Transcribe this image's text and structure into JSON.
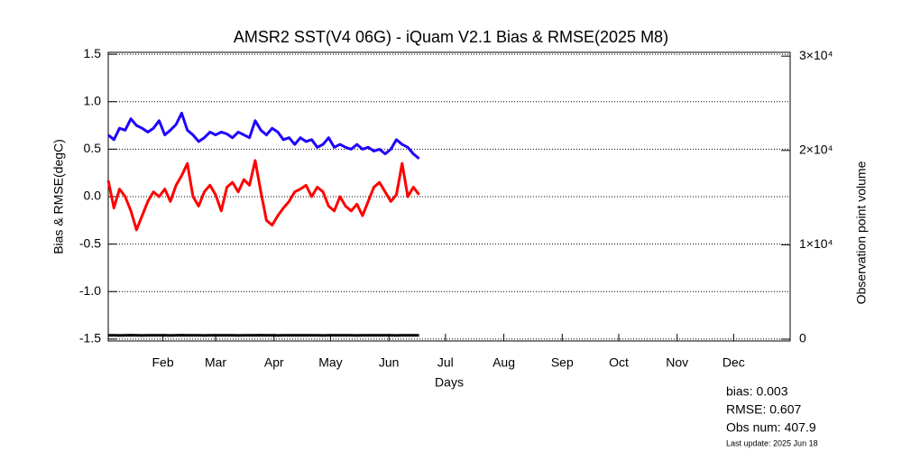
{
  "chart_data": {
    "type": "line",
    "title": "AMSR2 SST(V4 06G) - iQuam V2.1 Bias & RMSE(2025 M8)",
    "x_label": "Days",
    "y_label": "Bias & RMSE(degC)",
    "y2_label": "Observation point volume",
    "x": [
      3,
      6,
      9,
      12,
      15,
      18,
      21,
      24,
      27,
      30,
      33,
      36,
      39,
      42,
      45,
      48,
      51,
      54,
      57,
      60,
      63,
      66,
      69,
      72,
      75,
      78,
      81,
      84,
      87,
      90,
      93,
      96,
      99,
      102,
      105,
      108,
      111,
      114,
      117,
      120,
      123,
      126,
      129,
      132,
      135,
      138,
      141,
      144,
      147,
      150,
      153,
      156,
      159,
      162,
      165,
      168
    ],
    "xlim": [
      3,
      365
    ],
    "xticks": [
      {
        "value": 32,
        "label": "Feb"
      },
      {
        "value": 60,
        "label": "Mar"
      },
      {
        "value": 91,
        "label": "Apr"
      },
      {
        "value": 121,
        "label": "May"
      },
      {
        "value": 152,
        "label": "Jun"
      },
      {
        "value": 182,
        "label": "Jul"
      },
      {
        "value": 213,
        "label": "Aug"
      },
      {
        "value": 244,
        "label": "Sep"
      },
      {
        "value": 274,
        "label": "Oct"
      },
      {
        "value": 305,
        "label": "Nov"
      },
      {
        "value": 335,
        "label": "Dec"
      }
    ],
    "ylim": [
      -1.52,
      1.52
    ],
    "yticks": [
      -1.5,
      {
        "value": -1,
        "label": "-1.0"
      },
      -0.5,
      {
        "value": 0,
        "label": "0.0"
      },
      0.5,
      {
        "value": 1,
        "label": "1.0"
      },
      1.5
    ],
    "y2lim": [
      -190,
      30400
    ],
    "y2ticks": [
      0,
      {
        "value": 10000,
        "label": "1×10⁴"
      },
      {
        "value": 20000,
        "label": "2×10⁴"
      },
      {
        "value": 30000,
        "label": "3×10⁴"
      }
    ],
    "grid": true,
    "series": [
      {
        "color": "#ff0000",
        "values": [
          0.17,
          -0.12,
          0.08,
          0.0,
          -0.15,
          -0.35,
          -0.2,
          -0.05,
          0.05,
          0.0,
          0.08,
          -0.05,
          0.12,
          0.22,
          0.35,
          0.0,
          -0.1,
          0.05,
          0.12,
          0.02,
          -0.15,
          0.1,
          0.15,
          0.05,
          0.18,
          0.12,
          0.38,
          0.05,
          -0.25,
          -0.3,
          -0.2,
          -0.12,
          -0.05,
          0.05,
          0.08,
          0.12,
          0.0,
          0.1,
          0.05,
          -0.1,
          -0.15,
          0.0,
          -0.1,
          -0.15,
          -0.08,
          -0.2,
          -0.05,
          0.1,
          0.15,
          0.05,
          -0.05,
          0.02,
          0.35,
          0.0,
          0.1,
          0.02
        ]
      },
      {
        "color": "#1e00ff",
        "values": [
          0.65,
          0.6,
          0.72,
          0.7,
          0.82,
          0.75,
          0.72,
          0.68,
          0.72,
          0.8,
          0.65,
          0.7,
          0.76,
          0.88,
          0.7,
          0.65,
          0.58,
          0.62,
          0.68,
          0.65,
          0.68,
          0.66,
          0.62,
          0.68,
          0.65,
          0.62,
          0.8,
          0.7,
          0.65,
          0.72,
          0.68,
          0.6,
          0.62,
          0.55,
          0.62,
          0.58,
          0.6,
          0.52,
          0.55,
          0.62,
          0.52,
          0.55,
          0.52,
          0.5,
          0.55,
          0.5,
          0.52,
          0.48,
          0.5,
          0.45,
          0.5,
          0.6,
          0.55,
          0.52,
          0.45,
          0.4
        ]
      },
      {
        "color": "#000000",
        "axis": "y2",
        "values": [
          400,
          410,
          395,
          405,
          420,
          400,
          390,
          410,
          405,
          415,
          400,
          395,
          410,
          420,
          405,
          400,
          410,
          395,
          400,
          405,
          415,
          410,
          400,
          395,
          405,
          410,
          400,
          420,
          405,
          400,
          395,
          410,
          405,
          400,
          415,
          405,
          400,
          410,
          395,
          405,
          400,
          410,
          405,
          400,
          395,
          410,
          405,
          400,
          410,
          405,
          400,
          395,
          410,
          405,
          400,
          408
        ]
      }
    ],
    "annotations": [
      {
        "text": "bias: 0.003",
        "color": "#ff0000"
      },
      {
        "text": "RMSE: 0.607",
        "color": "#1e00ff"
      },
      {
        "text": "Obs num:  407.9",
        "color": "#000000"
      },
      {
        "text": "Last update: 2025 Jun 18",
        "color": "#000000"
      }
    ]
  }
}
